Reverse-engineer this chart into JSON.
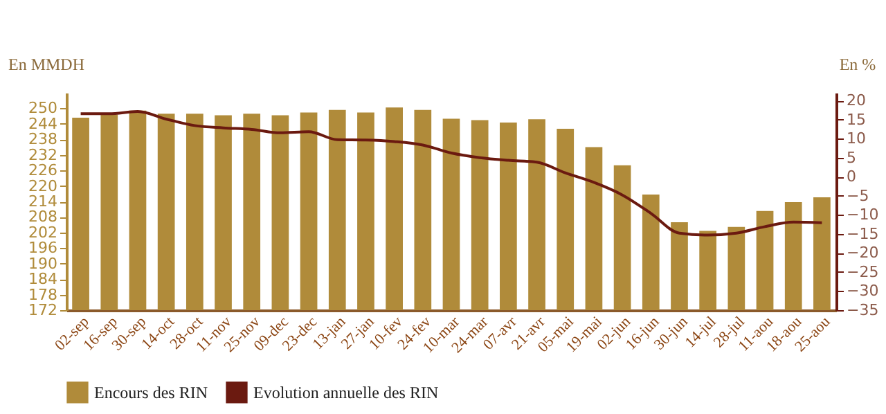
{
  "chart_data": {
    "type": "bar",
    "categories": [
      "02-sep",
      "16-sep",
      "30-sep",
      "14-oct",
      "28-oct",
      "11-nov",
      "25-nov",
      "09-dec",
      "23-dec",
      "13-jan",
      "27-jan",
      "10-fev",
      "24-fev",
      "10-mar",
      "24-mar",
      "07-avr",
      "21-avr",
      "05-mai",
      "19-mai",
      "02-jun",
      "16-jun",
      "30-jun",
      "14-jul",
      "28-jul",
      "11-aou",
      "18-aou",
      "25-aou"
    ],
    "series": [
      {
        "name": "Encours des RIN",
        "color": "#b08b3a",
        "values": [
          246.4,
          247.6,
          249.1,
          247.9,
          247.9,
          247.3,
          247.9,
          247.3,
          248.4,
          249.4,
          248.4,
          250.3,
          249.4,
          246.0,
          245.4,
          244.5,
          245.8,
          242.1,
          235.0,
          228.0,
          216.7,
          206.0,
          202.6,
          204.2,
          210.3,
          213.7,
          215.6
        ]
      },
      {
        "name": "Evolution annuelle des RIN",
        "type": "line",
        "axis": "y2",
        "color": "#6b1a10",
        "values": [
          16.5,
          16.5,
          17.1,
          15.1,
          13.4,
          12.8,
          12.4,
          11.5,
          11.8,
          9.7,
          9.6,
          9.2,
          8.3,
          6.2,
          5.0,
          4.3,
          3.8,
          1.0,
          -1.5,
          -4.8,
          -9.6,
          -14.8,
          -15.3,
          -14.8,
          -13.1,
          -11.9,
          -12.1
        ]
      }
    ],
    "ylabel": "En MMDH",
    "y2label": "En %",
    "ylim": [
      172,
      256
    ],
    "yticks": [
      172,
      178,
      184,
      190,
      196,
      202,
      208,
      214,
      220,
      226,
      232,
      238,
      244,
      250
    ],
    "y2lim": [
      -35,
      22
    ],
    "y2ticks": [
      -35,
      -30,
      -25,
      -20,
      -15,
      -10,
      -5,
      0,
      5,
      10,
      15,
      20
    ],
    "grid": false,
    "legend": "bottom"
  }
}
